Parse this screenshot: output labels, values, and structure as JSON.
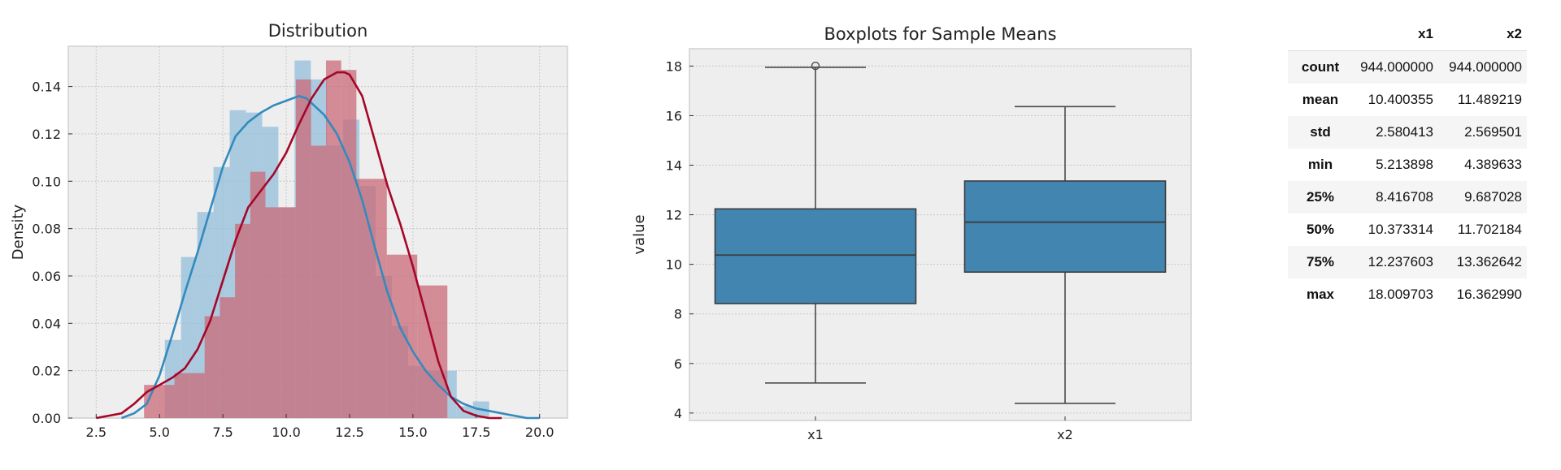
{
  "chart_data": [
    {
      "type": "histogram_kde",
      "title": "Distribution",
      "xlabel": "",
      "ylabel": "Density",
      "xlim": [
        1.4,
        21.1
      ],
      "ylim": [
        0,
        0.157
      ],
      "xticks": [
        2.5,
        5.0,
        7.5,
        10.0,
        12.5,
        15.0,
        17.5,
        20.0
      ],
      "xtick_labels": [
        "2.5",
        "5.0",
        "7.5",
        "10.0",
        "12.5",
        "15.0",
        "17.5",
        "20.0"
      ],
      "yticks": [
        0.0,
        0.02,
        0.04,
        0.06,
        0.08,
        0.1,
        0.12,
        0.14
      ],
      "ytick_labels": [
        "0.00",
        "0.02",
        "0.04",
        "0.06",
        "0.08",
        "0.10",
        "0.12",
        "0.14"
      ],
      "grid": true,
      "series": [
        {
          "name": "x1",
          "color": "#348abd",
          "bar_color": "#93bedb",
          "bins": [
            5.21,
            5.85,
            6.49,
            7.13,
            7.77,
            8.41,
            9.05,
            9.69,
            10.33,
            10.97,
            11.61,
            12.25,
            12.89,
            13.53,
            14.17,
            14.81,
            15.45,
            16.09,
            16.73,
            17.37,
            18.01
          ],
          "values": [
            0.033,
            0.068,
            0.087,
            0.106,
            0.13,
            0.129,
            0.123,
            0.089,
            0.151,
            0.143,
            0.115,
            0.126,
            0.098,
            0.06,
            0.039,
            0.022,
            0.02,
            0.02,
            0.005,
            0.007
          ],
          "kde_x": [
            3.5,
            4.0,
            4.5,
            5.0,
            5.5,
            6.0,
            6.5,
            7.0,
            7.5,
            8.0,
            8.5,
            9.0,
            9.5,
            10.0,
            10.5,
            10.8,
            11.0,
            11.5,
            12.0,
            12.5,
            13.0,
            13.5,
            14.0,
            14.5,
            15.0,
            15.5,
            16.0,
            16.5,
            17.0,
            17.5,
            18.0,
            18.5,
            19.0,
            19.5,
            20.0
          ],
          "kde_y": [
            0.0,
            0.002,
            0.006,
            0.018,
            0.035,
            0.053,
            0.07,
            0.088,
            0.106,
            0.119,
            0.125,
            0.129,
            0.132,
            0.134,
            0.136,
            0.135,
            0.133,
            0.128,
            0.12,
            0.108,
            0.092,
            0.072,
            0.053,
            0.038,
            0.028,
            0.02,
            0.014,
            0.009,
            0.006,
            0.004,
            0.003,
            0.002,
            0.001,
            0.0,
            0.0
          ]
        },
        {
          "name": "x2",
          "color": "#a60628",
          "bar_color": "#c96a78",
          "bins": [
            4.39,
            4.99,
            5.59,
            6.19,
            6.78,
            7.38,
            7.98,
            8.58,
            9.18,
            9.78,
            10.38,
            10.98,
            11.57,
            12.17,
            12.77,
            13.37,
            13.97,
            14.57,
            15.17,
            15.76,
            16.36
          ],
          "values": [
            0.014,
            0.014,
            0.019,
            0.019,
            0.043,
            0.051,
            0.082,
            0.104,
            0.089,
            0.089,
            0.143,
            0.115,
            0.151,
            0.147,
            0.101,
            0.101,
            0.069,
            0.069,
            0.056,
            0.056
          ],
          "kde_x": [
            2.5,
            3.0,
            3.5,
            4.0,
            4.5,
            5.0,
            5.5,
            6.0,
            6.5,
            7.0,
            7.5,
            8.0,
            8.5,
            9.0,
            9.5,
            10.0,
            10.5,
            11.0,
            11.5,
            12.0,
            12.3,
            12.5,
            13.0,
            13.5,
            14.0,
            14.5,
            15.0,
            15.5,
            16.0,
            16.5,
            17.0,
            17.5,
            18.0,
            18.5
          ],
          "kde_y": [
            0.0,
            0.001,
            0.002,
            0.006,
            0.011,
            0.014,
            0.017,
            0.021,
            0.029,
            0.041,
            0.058,
            0.075,
            0.089,
            0.096,
            0.103,
            0.112,
            0.124,
            0.135,
            0.143,
            0.146,
            0.146,
            0.145,
            0.136,
            0.117,
            0.098,
            0.082,
            0.064,
            0.044,
            0.024,
            0.009,
            0.003,
            0.001,
            0.0,
            0.0
          ]
        }
      ]
    },
    {
      "type": "box",
      "title": "Boxplots for Sample Means",
      "xlabel": "",
      "ylabel": "value",
      "ylim": [
        3.7,
        18.7
      ],
      "yticks": [
        4,
        6,
        8,
        10,
        12,
        14,
        16,
        18
      ],
      "ytick_labels": [
        "4",
        "6",
        "8",
        "10",
        "12",
        "14",
        "16",
        "18"
      ],
      "categories": [
        "x1",
        "x2"
      ],
      "box_color": "#4185b0",
      "grid": true,
      "boxes": [
        {
          "label": "x1",
          "whisker_low": 5.213898,
          "q1": 8.416708,
          "median": 10.373314,
          "q3": 12.237603,
          "whisker_high": 17.95,
          "outliers": [
            18.009703
          ]
        },
        {
          "label": "x2",
          "whisker_low": 4.389633,
          "q1": 9.687028,
          "median": 11.702184,
          "q3": 13.362642,
          "whisker_high": 16.36299,
          "outliers": []
        }
      ]
    }
  ],
  "table": {
    "columns": [
      "",
      "x1",
      "x2"
    ],
    "rows": [
      {
        "label": "count",
        "x1": "944.000000",
        "x2": "944.000000"
      },
      {
        "label": "mean",
        "x1": "10.400355",
        "x2": "11.489219"
      },
      {
        "label": "std",
        "x1": "2.580413",
        "x2": "2.569501"
      },
      {
        "label": "min",
        "x1": "5.213898",
        "x2": "4.389633"
      },
      {
        "label": "25%",
        "x1": "8.416708",
        "x2": "9.687028"
      },
      {
        "label": "50%",
        "x1": "10.373314",
        "x2": "11.702184"
      },
      {
        "label": "75%",
        "x1": "12.237603",
        "x2": "13.362642"
      },
      {
        "label": "max",
        "x1": "18.009703",
        "x2": "16.362990"
      }
    ]
  }
}
